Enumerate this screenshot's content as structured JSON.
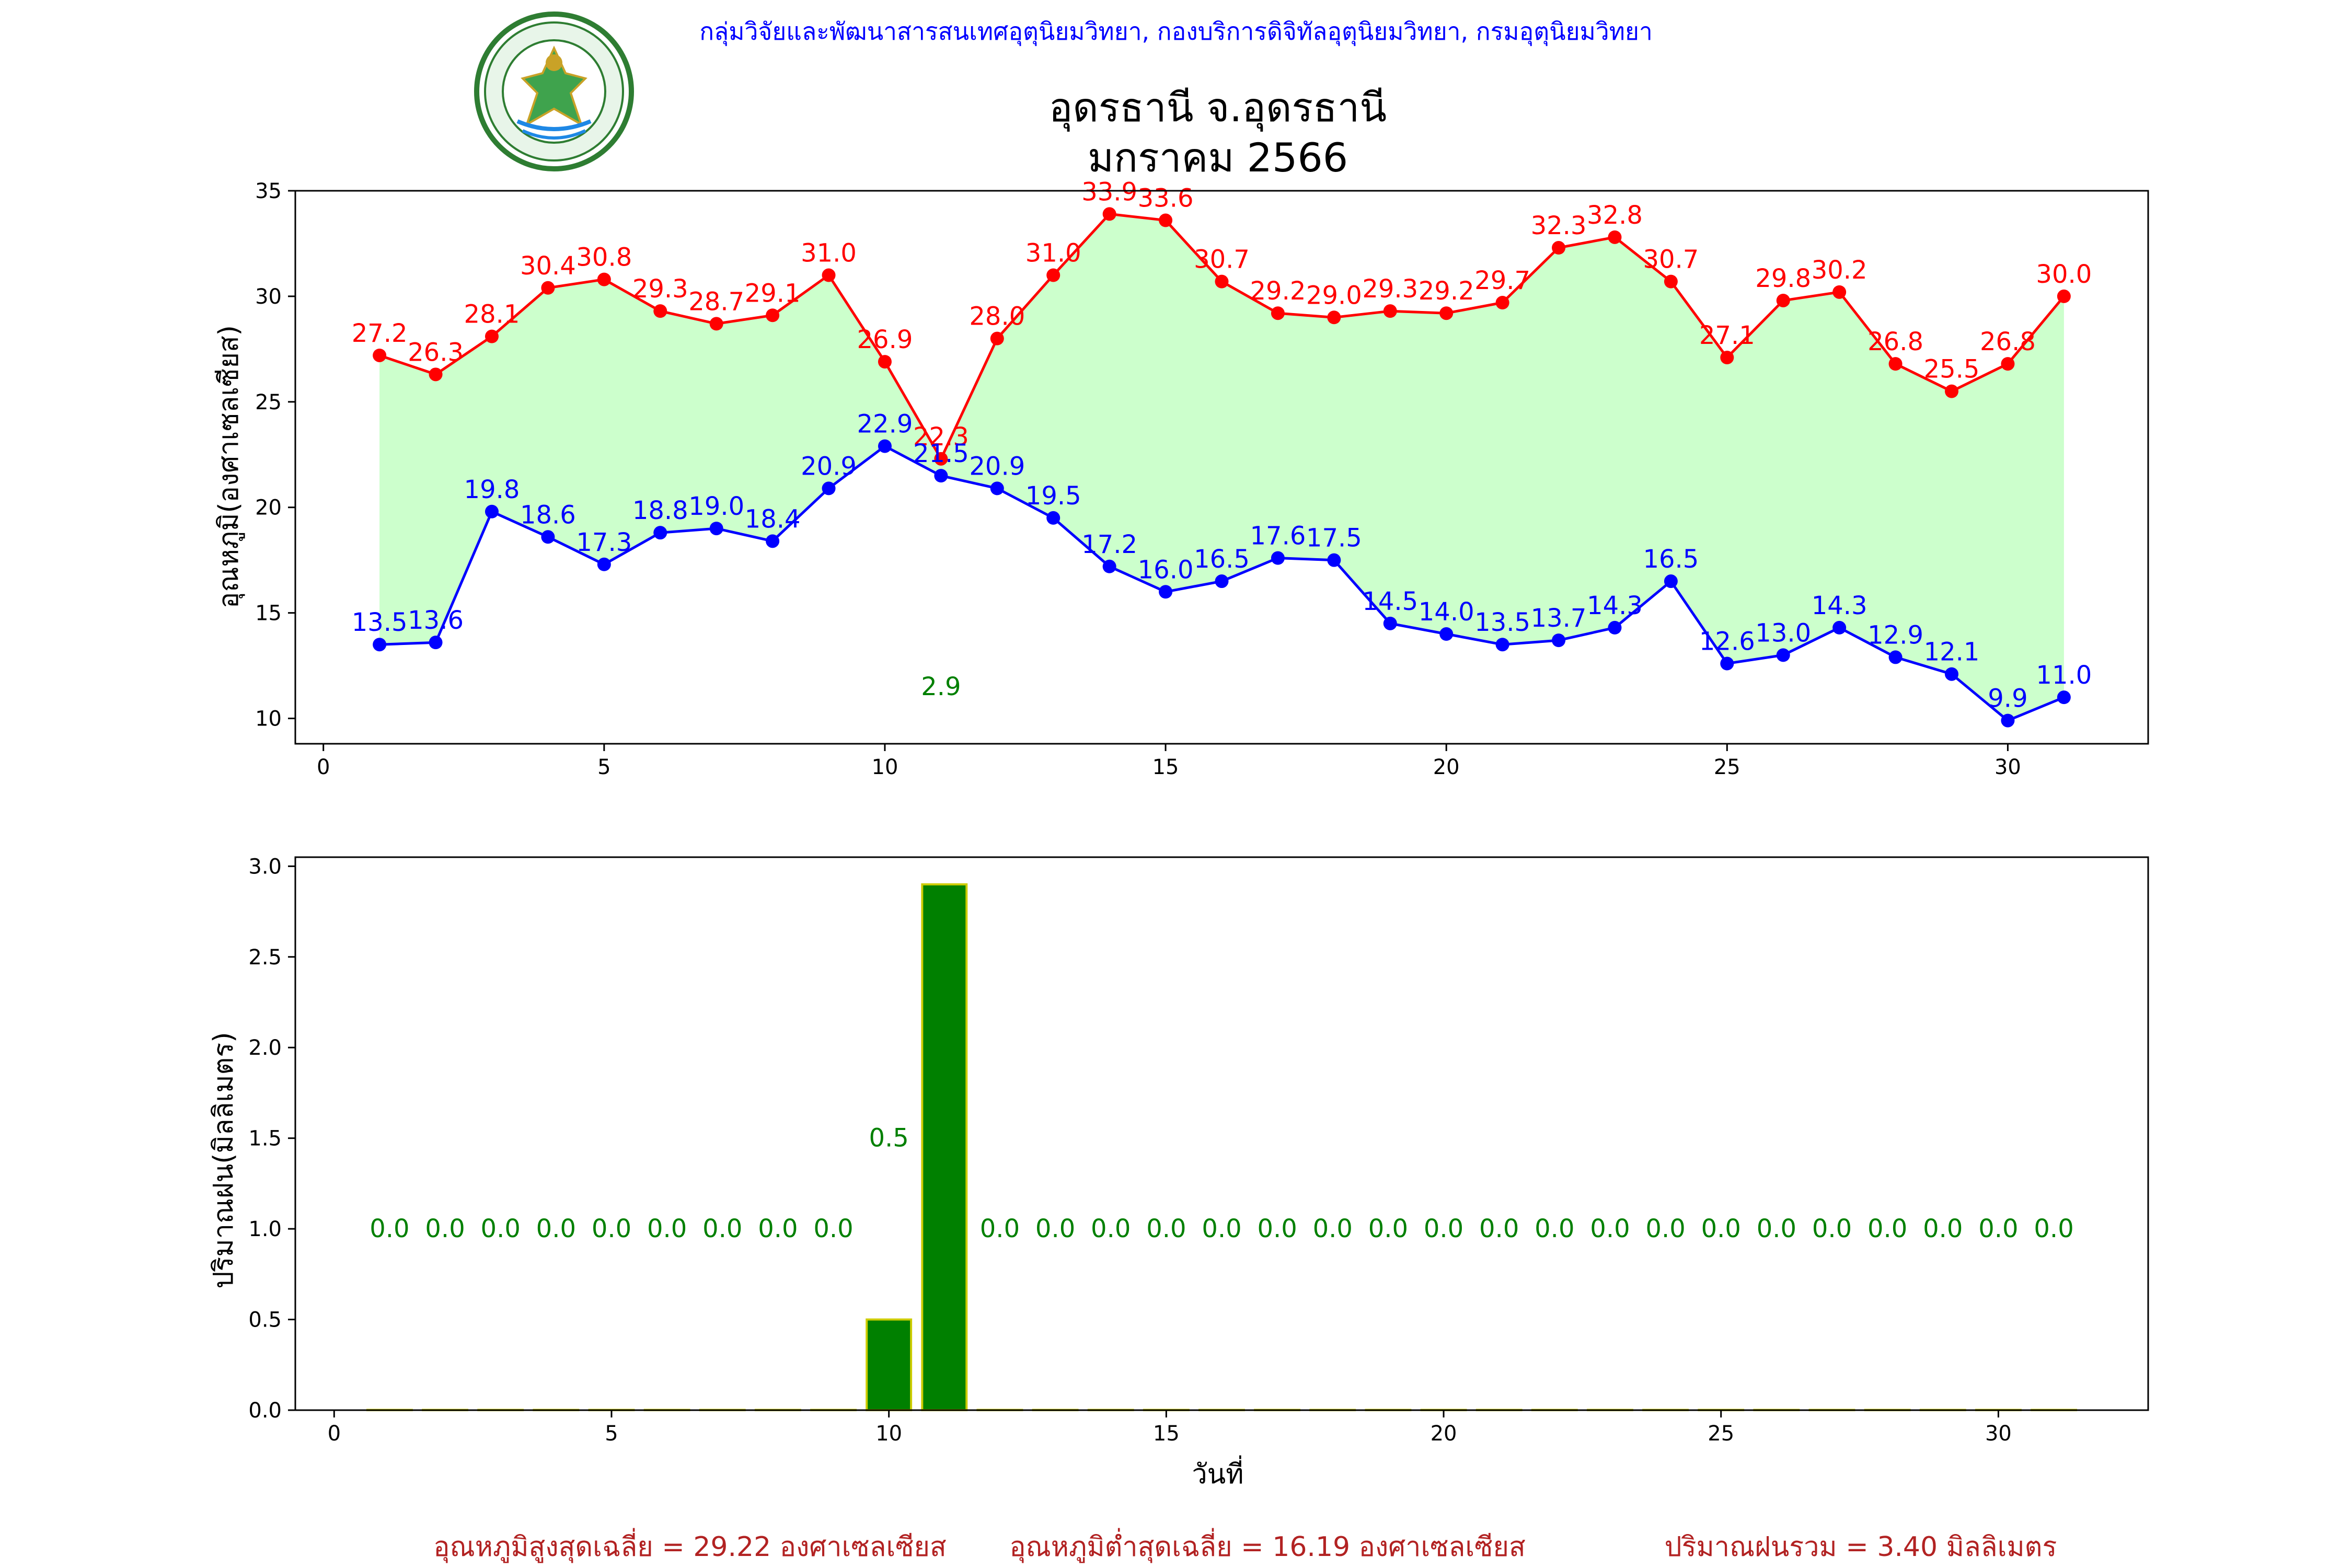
{
  "header": {
    "department_line": "กลุ่มวิจัยและพัฒนาสารสนเทศอุตุนิยมวิทยา, กองบริการดิจิทัลอุตุนิยมวิทยา, กรมอุตุนิยมวิทยา",
    "logo_name": "meteorological-department-seal",
    "logo_text": "กรมอุตุนิยมวิทยา METEOROLOGICAL DEPARTMENT"
  },
  "chart_data": [
    {
      "type": "line",
      "title": "อุดรธานี จ.อุดรธานี\nมกราคม 2566",
      "title_lines": [
        "อุดรธานี จ.อุดรธานี",
        "มกราคม 2566"
      ],
      "xlabel": "",
      "ylabel": "อุณหภูมิ(องศาเซลเซียส)",
      "x": [
        1,
        2,
        3,
        4,
        5,
        6,
        7,
        8,
        9,
        10,
        11,
        12,
        13,
        14,
        15,
        16,
        17,
        18,
        19,
        20,
        21,
        22,
        23,
        24,
        25,
        26,
        27,
        28,
        29,
        30,
        31
      ],
      "xlim": [
        -0.5,
        32.5
      ],
      "ylim": [
        8.8,
        35
      ],
      "xticks": [
        0,
        5,
        10,
        15,
        20,
        25,
        30
      ],
      "yticks": [
        10,
        15,
        20,
        25,
        30,
        35
      ],
      "grid": false,
      "fill_between": {
        "color": "#ccffcc",
        "from": "min",
        "to": "max"
      },
      "series": [
        {
          "key": "max",
          "color": "#ff0000",
          "values": [
            27.2,
            26.3,
            28.1,
            30.4,
            30.8,
            29.3,
            28.7,
            29.1,
            31.0,
            26.9,
            22.3,
            28.0,
            31.0,
            33.9,
            33.6,
            30.7,
            29.2,
            29.0,
            29.3,
            29.2,
            29.7,
            32.3,
            32.8,
            30.7,
            27.1,
            29.8,
            30.2,
            26.8,
            25.5,
            26.8,
            30.0
          ],
          "labels": [
            "27.2",
            "26.3",
            "28.1",
            "30.4",
            "30.8",
            "29.3",
            "28.7",
            "29.1",
            "31.0",
            "26.9",
            "22.3",
            "28.0",
            "31.0",
            "33.9",
            "33.6",
            "30.7",
            "29.2",
            "29.0",
            "29.3",
            "29.2",
            "29.7",
            "32.3",
            "32.8",
            "30.7",
            "27.1",
            "29.8",
            "30.2",
            "26.8",
            "25.5",
            "26.8",
            "30.0"
          ]
        },
        {
          "key": "min",
          "color": "#0000ff",
          "values": [
            13.5,
            13.6,
            19.8,
            18.6,
            17.3,
            18.8,
            19.0,
            18.4,
            20.9,
            22.9,
            21.5,
            20.9,
            19.5,
            17.2,
            16.0,
            16.5,
            17.6,
            17.5,
            14.5,
            14.0,
            13.5,
            13.7,
            14.3,
            16.5,
            12.6,
            13.0,
            14.3,
            12.9,
            12.1,
            9.9,
            11.0
          ],
          "labels": [
            "13.5",
            "13.6",
            "19.8",
            "18.6",
            "17.3",
            "18.8",
            "19.0",
            "18.4",
            "20.9",
            "22.9",
            "21.5",
            "20.9",
            "19.5",
            "17.2",
            "16.0",
            "16.5",
            "17.6",
            "17.5",
            "14.5",
            "14.0",
            "13.5",
            "13.7",
            "14.3",
            "16.5",
            "12.6",
            "13.0",
            "14.3",
            "12.9",
            "12.1",
            "9.9",
            "11.0"
          ]
        }
      ],
      "annotations": [
        {
          "x": 11,
          "y": 11.1,
          "text": "2.9",
          "color": "#008000"
        }
      ]
    },
    {
      "type": "bar",
      "title": "",
      "xlabel": "วันที่",
      "ylabel": "ปริมาณฝน(มิลลิเมตร)",
      "x": [
        1,
        2,
        3,
        4,
        5,
        6,
        7,
        8,
        9,
        10,
        11,
        12,
        13,
        14,
        15,
        16,
        17,
        18,
        19,
        20,
        21,
        22,
        23,
        24,
        25,
        26,
        27,
        28,
        29,
        30,
        31
      ],
      "values": [
        0.0,
        0.0,
        0.0,
        0.0,
        0.0,
        0.0,
        0.0,
        0.0,
        0.0,
        0.5,
        2.9,
        0.0,
        0.0,
        0.0,
        0.0,
        0.0,
        0.0,
        0.0,
        0.0,
        0.0,
        0.0,
        0.0,
        0.0,
        0.0,
        0.0,
        0.0,
        0.0,
        0.0,
        0.0,
        0.0,
        0.0
      ],
      "labels": [
        "0.0",
        "0.0",
        "0.0",
        "0.0",
        "0.0",
        "0.0",
        "0.0",
        "0.0",
        "0.0",
        "0.5",
        "",
        "0.0",
        "0.0",
        "0.0",
        "0.0",
        "0.0",
        "0.0",
        "0.0",
        "0.0",
        "0.0",
        "0.0",
        "0.0",
        "0.0",
        "0.0",
        "0.0",
        "0.0",
        "0.0",
        "0.0",
        "0.0",
        "0.0",
        "0.0"
      ],
      "label_color": "#008000",
      "bar_color": "#008000",
      "bar_edge_color": "#cccc00",
      "xlim": [
        -0.7,
        32.7
      ],
      "ylim": [
        0,
        3.05
      ],
      "xticks": [
        0,
        5,
        10,
        15,
        20,
        25,
        30
      ],
      "yticks": [
        0.0,
        0.5,
        1.0,
        1.5,
        2.0,
        2.5,
        3.0
      ],
      "ytick_labels": [
        "0.0",
        "0.5",
        "1.0",
        "1.5",
        "2.0",
        "2.5",
        "3.0"
      ],
      "grid": false
    }
  ],
  "footer": {
    "color": "#b22222",
    "avg_max": "อุณหภูมิสูงสุดเฉลี่ย = 29.22 องศาเซลเซียส",
    "avg_min": "อุณหภูมิต่ำสุดเฉลี่ย = 16.19 องศาเซลเซียส",
    "rain_total": "ปริมาณฝนรวม = 3.40 มิลลิเมตร"
  }
}
